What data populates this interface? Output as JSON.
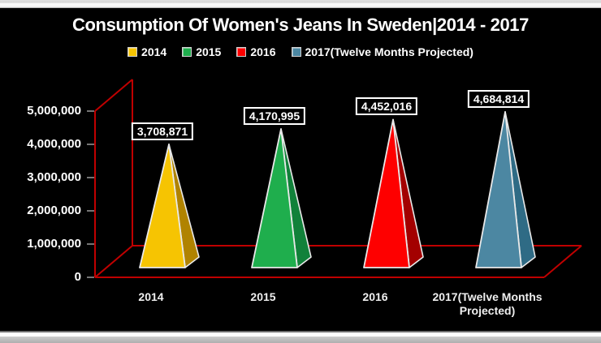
{
  "title": "Consumption Of Women's Jeans In Sweden|2014 - 2017",
  "chart_data": {
    "type": "bar",
    "subtype": "pyramid-3d",
    "title": "Consumption Of Women's Jeans In Sweden|2014 - 2017",
    "categories": [
      "2014",
      "2015",
      "2016",
      "2017(Twelve Months Projected)"
    ],
    "values": [
      3708871,
      4170995,
      4452016,
      4684814
    ],
    "data_labels": [
      "3,708,871",
      "4,170,995",
      "4,452,016",
      "4,684,814"
    ],
    "series_colors": [
      {
        "front": "#F6C402",
        "side": "#B08300"
      },
      {
        "front": "#1FAE4D",
        "side": "#11813A"
      },
      {
        "front": "#FE0000",
        "side": "#A30000"
      },
      {
        "front": "#4C87A2",
        "side": "#2F6B85"
      }
    ],
    "y_axis": {
      "min": 0,
      "max": 5000000,
      "step": 1000000,
      "tick_labels": [
        "0",
        "1,000,000",
        "2,000,000",
        "3,000,000",
        "4,000,000",
        "5,000,000"
      ]
    },
    "legend_position": "top",
    "grid": false,
    "background_color": "#000000",
    "axis_frame_color": "#C00000",
    "tick_color": "#9b9b9b",
    "text_color": "#FFFFFF",
    "edge_highlight_color": "#E9E9E9"
  }
}
